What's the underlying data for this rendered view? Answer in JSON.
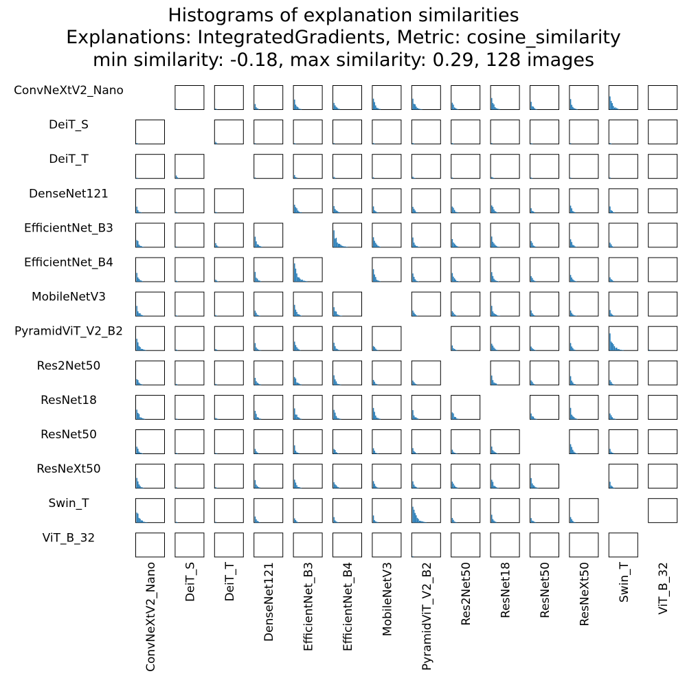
{
  "chart_data": {
    "type": "histogram-matrix",
    "title_lines": [
      "Histograms of explanation similarities",
      "Explanations: IntegratedGradients, Metric: cosine_similarity",
      "min similarity: -0.18, max similarity: 0.29, 128 images"
    ],
    "explanation_method": "IntegratedGradients",
    "metric": "cosine_similarity",
    "min_similarity": -0.18,
    "max_similarity": 0.29,
    "n_images": 128,
    "models": [
      "ConvNeXtV2_Nano",
      "DeiT_S",
      "DeiT_T",
      "DenseNet121",
      "EfficientNet_B3",
      "EfficientNet_B4",
      "MobileNetV3",
      "PyramidViT_V2_B2",
      "Res2Net50",
      "ResNet18",
      "ResNet50",
      "ResNeXt50",
      "Swin_T",
      "ViT_B_32"
    ],
    "diagonal": "empty",
    "grid": false,
    "bar_color": "#1f77b4",
    "histogram_strength": [
      [
        0.0,
        0.05,
        0.05,
        0.3,
        0.55,
        0.5,
        0.6,
        0.7,
        0.45,
        0.65,
        0.45,
        0.55,
        0.75,
        0.0
      ],
      [
        0.05,
        0.0,
        0.1,
        0.05,
        0.05,
        0.05,
        0.05,
        0.05,
        0.05,
        0.05,
        0.05,
        0.05,
        0.05,
        0.0
      ],
      [
        0.05,
        0.15,
        0.0,
        0.05,
        0.2,
        0.1,
        0.05,
        0.1,
        0.05,
        0.1,
        0.05,
        0.05,
        0.05,
        0.0
      ],
      [
        0.3,
        0.05,
        0.05,
        0.0,
        0.6,
        0.5,
        0.35,
        0.4,
        0.45,
        0.5,
        0.3,
        0.4,
        0.35,
        0.0
      ],
      [
        0.55,
        0.05,
        0.2,
        0.6,
        0.0,
        0.9,
        0.6,
        0.5,
        0.55,
        0.6,
        0.4,
        0.5,
        0.3,
        0.0
      ],
      [
        0.5,
        0.05,
        0.1,
        0.5,
        0.9,
        0.0,
        0.6,
        0.45,
        0.5,
        0.55,
        0.35,
        0.45,
        0.3,
        0.0
      ],
      [
        0.6,
        0.05,
        0.05,
        0.35,
        0.6,
        0.6,
        0.0,
        0.35,
        0.35,
        0.6,
        0.3,
        0.4,
        0.35,
        0.0
      ],
      [
        0.7,
        0.05,
        0.1,
        0.4,
        0.5,
        0.45,
        0.35,
        0.0,
        0.3,
        0.5,
        0.3,
        0.4,
        0.9,
        0.05
      ],
      [
        0.45,
        0.05,
        0.05,
        0.45,
        0.55,
        0.5,
        0.35,
        0.3,
        0.0,
        0.55,
        0.3,
        0.45,
        0.3,
        0.0
      ],
      [
        0.65,
        0.05,
        0.1,
        0.5,
        0.6,
        0.55,
        0.6,
        0.5,
        0.55,
        0.0,
        0.45,
        0.55,
        0.4,
        0.0
      ],
      [
        0.45,
        0.05,
        0.05,
        0.3,
        0.4,
        0.35,
        0.3,
        0.3,
        0.3,
        0.45,
        0.0,
        0.55,
        0.3,
        0.0
      ],
      [
        0.55,
        0.05,
        0.05,
        0.4,
        0.5,
        0.45,
        0.4,
        0.4,
        0.45,
        0.55,
        0.55,
        0.0,
        0.35,
        0.0
      ],
      [
        0.75,
        0.05,
        0.05,
        0.35,
        0.3,
        0.3,
        0.35,
        0.9,
        0.3,
        0.4,
        0.3,
        0.35,
        0.0,
        0.0
      ],
      [
        0.0,
        0.0,
        0.0,
        0.0,
        0.0,
        0.0,
        0.0,
        0.05,
        0.0,
        0.0,
        0.0,
        0.0,
        0.0,
        0.0
      ]
    ]
  }
}
